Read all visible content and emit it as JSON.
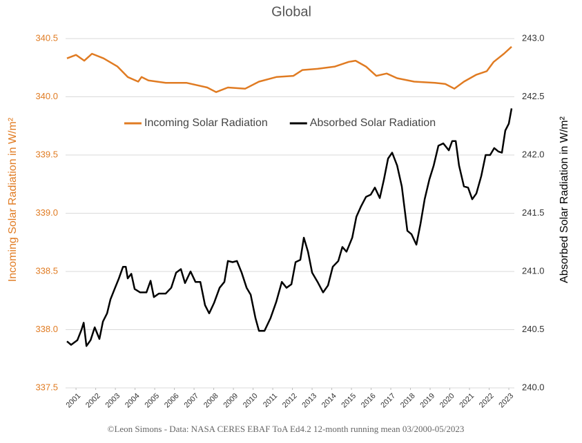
{
  "chart_data": {
    "type": "line",
    "title": "Global",
    "source": "©Leon Simons -  Data: NASA CERES EBAF ToA Ed4.2 12-month running mean 03/2000-05/2023",
    "ylabel": "Incoming Solar Radiation in W/m²",
    "y2label": "Absorbed Solar Radiation in W/m²",
    "legend": "top-center",
    "grid": true,
    "xlim": [
      2000.47,
      2023.28
    ],
    "xticks": [
      2001,
      2002,
      2003,
      2004,
      2005,
      2006,
      2007,
      2008,
      2009,
      2010,
      2011,
      2012,
      2013,
      2014,
      2015,
      2016,
      2017,
      2018,
      2019,
      2020,
      2021,
      2022,
      2023
    ],
    "ylim": [
      337.5,
      340.5
    ],
    "yticks": [
      337.5,
      {
        "value": 338,
        "label": "338.0"
      },
      338.5,
      {
        "value": 339,
        "label": "339.0"
      },
      339.5,
      {
        "value": 340,
        "label": "340.0"
      },
      340.5
    ],
    "y2lim": [
      240,
      243
    ],
    "y2ticks": [
      {
        "value": 240,
        "label": "240.0"
      },
      240.5,
      {
        "value": 241,
        "label": "241.0"
      },
      241.5,
      {
        "value": 242,
        "label": "242.0"
      },
      242.5,
      {
        "value": 243,
        "label": "243.0"
      }
    ],
    "series": [
      {
        "name": "Incoming Solar Radiation",
        "color": "#e07b22",
        "axis": "y",
        "x": [
          2000.54,
          2001.0,
          2001.42,
          2001.81,
          2002.4,
          2003.11,
          2003.63,
          2004.16,
          2004.33,
          2004.68,
          2005.56,
          2006.61,
          2007.67,
          2008.12,
          2008.72,
          2009.6,
          2010.3,
          2011.18,
          2012.05,
          2012.51,
          2013.28,
          2014.16,
          2014.86,
          2015.21,
          2015.74,
          2016.26,
          2016.79,
          2017.32,
          2018.19,
          2019.25,
          2019.77,
          2020.23,
          2020.72,
          2021.35,
          2021.88,
          2022.23,
          2022.75,
          2023.14
        ],
        "values": [
          340.33,
          340.36,
          340.31,
          340.37,
          340.33,
          340.26,
          340.17,
          340.13,
          340.17,
          340.14,
          340.12,
          340.12,
          340.08,
          340.04,
          340.08,
          340.07,
          340.13,
          340.17,
          340.18,
          340.23,
          340.24,
          340.26,
          340.3,
          340.31,
          340.26,
          340.18,
          340.2,
          340.16,
          340.13,
          340.12,
          340.11,
          340.07,
          340.13,
          340.19,
          340.22,
          340.3,
          340.37,
          340.43
        ]
      },
      {
        "name": "Absorbed Solar Radiation",
        "color": "#000000",
        "axis": "y2",
        "x": [
          2000.54,
          2000.75,
          2001.07,
          2001.28,
          2001.39,
          2001.53,
          2001.74,
          2001.95,
          2002.19,
          2002.37,
          2002.58,
          2002.75,
          2002.96,
          2003.18,
          2003.39,
          2003.53,
          2003.63,
          2003.81,
          2003.98,
          2004.26,
          2004.58,
          2004.79,
          2004.96,
          2005.21,
          2005.56,
          2005.84,
          2006.09,
          2006.33,
          2006.54,
          2006.82,
          2007.07,
          2007.32,
          2007.56,
          2007.77,
          2008.02,
          2008.3,
          2008.54,
          2008.72,
          2008.96,
          2009.18,
          2009.42,
          2009.67,
          2009.88,
          2010.12,
          2010.3,
          2010.58,
          2010.89,
          2011.18,
          2011.46,
          2011.7,
          2011.95,
          2012.16,
          2012.4,
          2012.58,
          2012.79,
          2013.0,
          2013.28,
          2013.56,
          2013.81,
          2014.05,
          2014.33,
          2014.54,
          2014.75,
          2015.04,
          2015.25,
          2015.49,
          2015.74,
          2015.98,
          2016.19,
          2016.44,
          2016.65,
          2016.86,
          2017.07,
          2017.32,
          2017.56,
          2017.84,
          2018.05,
          2018.3,
          2018.51,
          2018.72,
          2018.96,
          2019.18,
          2019.42,
          2019.67,
          2019.95,
          2020.12,
          2020.3,
          2020.47,
          2020.72,
          2020.93,
          2021.14,
          2021.35,
          2021.6,
          2021.82,
          2022.05,
          2022.26,
          2022.47,
          2022.65,
          2022.82,
          2023.0,
          2023.14
        ],
        "values": [
          240.4,
          240.37,
          240.41,
          240.5,
          240.56,
          240.36,
          240.41,
          240.52,
          240.42,
          240.57,
          240.64,
          240.76,
          240.85,
          240.94,
          241.04,
          241.04,
          240.94,
          240.98,
          240.85,
          240.82,
          240.82,
          240.92,
          240.78,
          240.81,
          240.81,
          240.86,
          240.99,
          241.02,
          240.9,
          241.0,
          240.91,
          240.91,
          240.71,
          240.64,
          240.73,
          240.86,
          240.91,
          241.09,
          241.08,
          241.09,
          240.99,
          240.86,
          240.8,
          240.6,
          240.49,
          240.49,
          240.6,
          240.74,
          240.91,
          240.86,
          240.89,
          241.08,
          241.1,
          241.29,
          241.17,
          240.99,
          240.91,
          240.82,
          240.88,
          241.04,
          241.09,
          241.21,
          241.17,
          241.29,
          241.47,
          241.56,
          241.64,
          241.66,
          241.72,
          241.63,
          241.79,
          241.97,
          242.02,
          241.91,
          241.73,
          241.35,
          241.32,
          241.23,
          241.41,
          241.62,
          241.79,
          241.91,
          242.08,
          242.1,
          242.04,
          242.12,
          242.12,
          241.91,
          241.73,
          241.72,
          241.62,
          241.67,
          241.82,
          242.0,
          242.0,
          242.06,
          242.03,
          242.02,
          242.21,
          242.27,
          242.4
        ]
      }
    ]
  }
}
